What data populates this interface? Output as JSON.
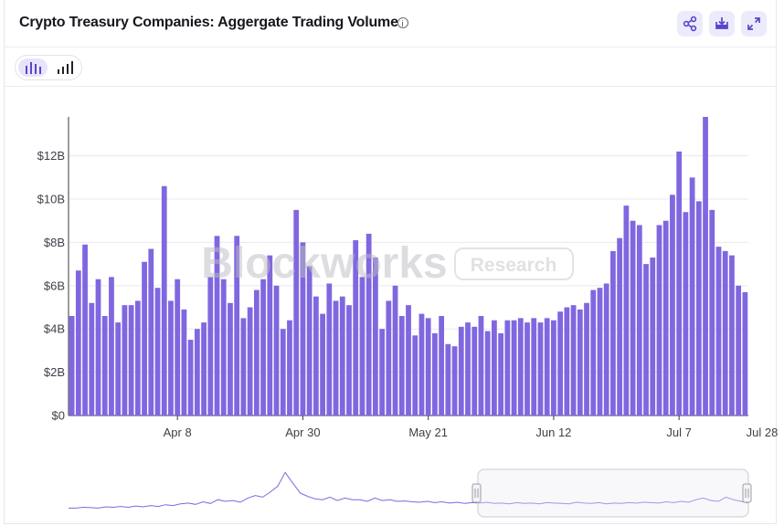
{
  "header": {
    "title": "Crypto Treasury Companies: Aggergate Trading Volume",
    "icons": {
      "info": "info-icon",
      "share": "share-icon",
      "download": "download-icon",
      "expand": "expand-icon"
    }
  },
  "toolbar": {
    "bar_view_icon": "bar-chart-icon",
    "cumulative_view_icon": "ascending-bars-icon",
    "active_view": "bar"
  },
  "watermark": {
    "brand": "Blockworks",
    "badge": "Research"
  },
  "colors": {
    "bar": "#8067e0",
    "accent": "#6f57d8",
    "grid": "#e9e9ee",
    "axis_text": "#3f3f48",
    "navigator_line": "#7f67e0"
  },
  "chart_data": {
    "type": "bar",
    "title": "Crypto Treasury Companies: Aggergate Trading Volume",
    "xlabel": "",
    "ylabel": "",
    "y_unit": "$B",
    "ylim": [
      0,
      13.8
    ],
    "yticks": [
      0,
      2,
      4,
      6,
      8,
      10,
      12
    ],
    "ytick_labels": [
      "$0",
      "$2B",
      "$4B",
      "$6B",
      "$8B",
      "$10B",
      "$12B"
    ],
    "xticks": [
      {
        "label": "Apr 8",
        "index": 16
      },
      {
        "label": "Apr 30",
        "index": 35
      },
      {
        "label": "May 21",
        "index": 54
      },
      {
        "label": "Jun 12",
        "index": 73
      },
      {
        "label": "Jul 7",
        "index": 92
      },
      {
        "label": "Jul 28",
        "index": 111
      }
    ],
    "grid": true,
    "values": [
      4.6,
      6.7,
      7.9,
      5.2,
      6.3,
      4.6,
      6.4,
      4.3,
      5.1,
      5.1,
      5.3,
      7.1,
      7.7,
      5.9,
      10.6,
      5.3,
      6.3,
      4.9,
      3.5,
      4.0,
      4.3,
      6.4,
      8.3,
      6.3,
      5.2,
      8.3,
      4.5,
      5.0,
      5.8,
      6.3,
      7.4,
      6.0,
      4.0,
      4.4,
      9.5,
      8.0,
      6.9,
      5.5,
      4.7,
      6.1,
      5.3,
      5.5,
      5.1,
      8.1,
      6.4,
      8.4,
      7.3,
      4.0,
      5.3,
      6.0,
      4.6,
      5.1,
      3.7,
      4.7,
      4.5,
      3.8,
      4.6,
      3.3,
      3.2,
      4.1,
      4.3,
      4.1,
      4.6,
      3.9,
      4.4,
      3.8,
      4.4,
      4.4,
      4.5,
      4.3,
      4.5,
      4.3,
      4.5,
      4.4,
      4.8,
      5.0,
      5.1,
      4.9,
      5.2,
      5.8,
      5.9,
      6.1,
      7.6,
      8.2,
      9.7,
      9.0,
      8.8,
      7.0,
      7.3,
      8.8,
      9.0,
      10.2,
      12.2,
      9.4,
      11.0,
      9.9,
      13.8,
      9.5,
      7.8,
      7.6,
      7.4,
      6.0,
      5.7
    ],
    "navigator": {
      "range": "full history",
      "selected_window": "last 3 months",
      "relative_series": [
        0.1,
        0.1,
        0.12,
        0.11,
        0.1,
        0.13,
        0.12,
        0.14,
        0.12,
        0.15,
        0.13,
        0.16,
        0.14,
        0.18,
        0.16,
        0.2,
        0.22,
        0.19,
        0.25,
        0.21,
        0.3,
        0.26,
        0.28,
        0.24,
        0.34,
        0.4,
        0.36,
        0.48,
        0.62,
        0.95,
        0.7,
        0.46,
        0.38,
        0.32,
        0.3,
        0.36,
        0.28,
        0.34,
        0.3,
        0.3,
        0.26,
        0.34,
        0.28,
        0.3,
        0.26,
        0.27,
        0.25,
        0.24,
        0.26,
        0.23,
        0.25,
        0.22,
        0.24,
        0.21,
        0.23,
        0.22,
        0.24,
        0.21,
        0.22,
        0.2,
        0.23,
        0.21,
        0.22,
        0.2,
        0.23,
        0.22,
        0.21,
        0.2,
        0.24,
        0.22,
        0.21,
        0.23,
        0.2,
        0.22,
        0.21,
        0.23,
        0.22,
        0.24,
        0.23,
        0.22,
        0.25,
        0.23,
        0.26,
        0.24,
        0.3,
        0.34,
        0.28,
        0.26,
        0.36,
        0.3,
        0.26,
        0.22
      ]
    }
  }
}
